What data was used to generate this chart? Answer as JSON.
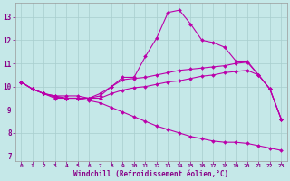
{
  "title": "",
  "xlabel": "Windchill (Refroidissement éolien,°C)",
  "ylabel": "",
  "xlim": [
    -0.5,
    23.5
  ],
  "ylim": [
    6.8,
    13.6
  ],
  "yticks": [
    7,
    8,
    9,
    10,
    11,
    12,
    13
  ],
  "xticks": [
    0,
    1,
    2,
    3,
    4,
    5,
    6,
    7,
    8,
    9,
    10,
    11,
    12,
    13,
    14,
    15,
    16,
    17,
    18,
    19,
    20,
    21,
    22,
    23
  ],
  "background_color": "#c5e8e8",
  "grid_color": "#a8cece",
  "line_color": "#bb00aa",
  "line1": [
    10.2,
    9.9,
    9.7,
    9.6,
    9.6,
    9.6,
    9.5,
    9.6,
    10.0,
    10.4,
    10.4,
    11.3,
    12.1,
    13.2,
    13.3,
    12.7,
    12.0,
    11.9,
    11.7,
    11.1,
    11.1,
    10.5,
    9.9,
    8.6
  ],
  "line2": [
    10.2,
    9.9,
    9.7,
    9.6,
    9.5,
    9.5,
    9.5,
    9.7,
    10.0,
    10.3,
    10.35,
    10.4,
    10.5,
    10.6,
    10.7,
    10.75,
    10.8,
    10.85,
    10.9,
    11.0,
    11.05,
    10.5,
    9.9,
    8.6
  ],
  "line3": [
    10.2,
    9.9,
    9.7,
    9.55,
    9.5,
    9.5,
    9.5,
    9.5,
    9.7,
    9.85,
    9.95,
    10.0,
    10.1,
    10.2,
    10.25,
    10.35,
    10.45,
    10.5,
    10.6,
    10.65,
    10.7,
    10.5,
    9.9,
    8.6
  ],
  "line4": [
    10.2,
    9.9,
    9.7,
    9.5,
    9.5,
    9.5,
    9.4,
    9.3,
    9.1,
    8.9,
    8.7,
    8.5,
    8.3,
    8.15,
    8.0,
    7.85,
    7.75,
    7.65,
    7.6,
    7.6,
    7.55,
    7.45,
    7.35,
    7.25
  ]
}
